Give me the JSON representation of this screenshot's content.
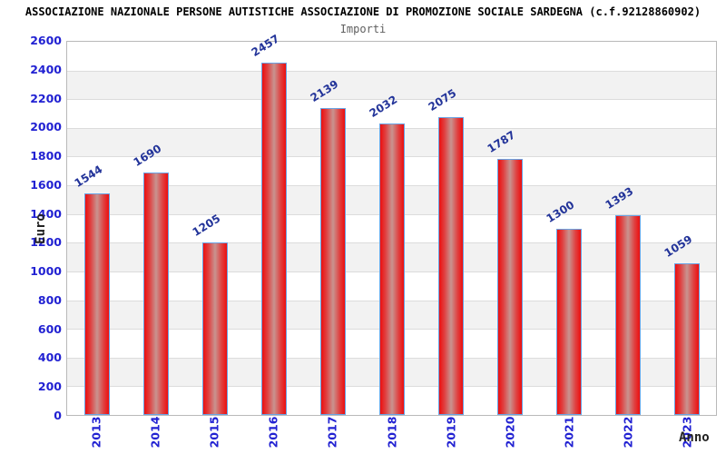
{
  "chart_data": {
    "type": "bar",
    "title": "ASSOCIAZIONE NAZIONALE PERSONE AUTISTICHE ASSOCIAZIONE DI PROMOZIONE SOCIALE SARDEGNA (c.f.92128860902)",
    "subtitle": "Importi",
    "xlabel": "Anno",
    "ylabel": "Euro",
    "categories": [
      "2013",
      "2014",
      "2015",
      "2016",
      "2017",
      "2018",
      "2019",
      "2020",
      "2021",
      "2022",
      "2023"
    ],
    "values": [
      1544,
      1690,
      1205,
      2457,
      2139,
      2032,
      2075,
      1787,
      1300,
      1393,
      1059
    ],
    "ylim": [
      0,
      2600
    ],
    "ytick_step": 200,
    "yticks": [
      "0",
      "200",
      "400",
      "600",
      "800",
      "1000",
      "1200",
      "1400",
      "1600",
      "1800",
      "2000",
      "2200",
      "2400",
      "2600"
    ],
    "grid": "horizontal-bands",
    "legend": "none",
    "colors": {
      "bar_fill_edge": "#ec0f0f",
      "bar_fill_center": "#c89490",
      "bar_border": "#6aa3e4",
      "tick_label": "#2121d2",
      "value_label": "#223399",
      "title": "#000000",
      "subtitle": "#606060",
      "axis_label": "#222222",
      "band_alt": "#f2f2f2",
      "gridline": "#dcdcdc",
      "plot_border": "#b9b9b9"
    }
  }
}
